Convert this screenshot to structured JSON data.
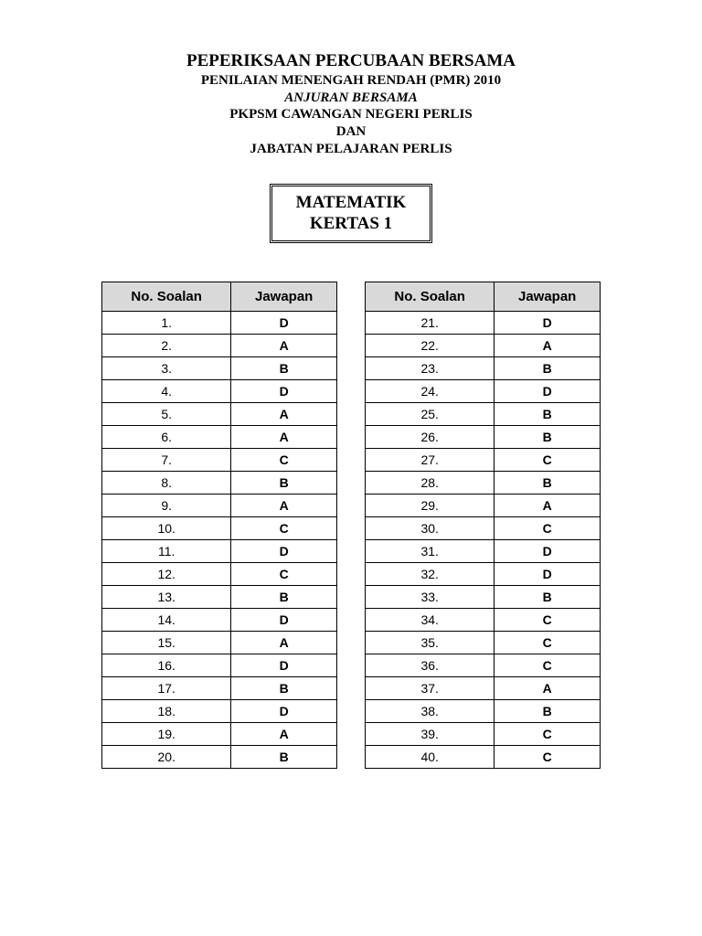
{
  "header": {
    "line1": "PEPERIKSAAN PERCUBAAN BERSAMA",
    "line2": "PENILAIAN MENENGAH RENDAH (PMR) 2010",
    "line3": "ANJURAN BERSAMA",
    "line4": "PKPSM CAWANGAN NEGERI PERLIS",
    "line5": "DAN",
    "line6": "JABATAN PELAJARAN PERLIS"
  },
  "subject": {
    "line1": "MATEMATIK",
    "line2": "KERTAS 1"
  },
  "table_headers": {
    "col1": "No. Soalan",
    "col2": "Jawapan"
  },
  "left_table": {
    "rows": [
      {
        "n": "1.",
        "a": "D"
      },
      {
        "n": "2.",
        "a": "A"
      },
      {
        "n": "3.",
        "a": "B"
      },
      {
        "n": "4.",
        "a": "D"
      },
      {
        "n": "5.",
        "a": "A"
      },
      {
        "n": "6.",
        "a": "A"
      },
      {
        "n": "7.",
        "a": "C"
      },
      {
        "n": "8.",
        "a": "B"
      },
      {
        "n": "9.",
        "a": "A"
      },
      {
        "n": "10.",
        "a": "C"
      },
      {
        "n": "11.",
        "a": "D"
      },
      {
        "n": "12.",
        "a": "C"
      },
      {
        "n": "13.",
        "a": "B"
      },
      {
        "n": "14.",
        "a": "D"
      },
      {
        "n": "15.",
        "a": "A"
      },
      {
        "n": "16.",
        "a": "D"
      },
      {
        "n": "17.",
        "a": "B"
      },
      {
        "n": "18.",
        "a": "D"
      },
      {
        "n": "19.",
        "a": "A"
      },
      {
        "n": "20.",
        "a": "B"
      }
    ]
  },
  "right_table": {
    "rows": [
      {
        "n": "21.",
        "a": "D"
      },
      {
        "n": "22.",
        "a": "A"
      },
      {
        "n": "23.",
        "a": "B"
      },
      {
        "n": "24.",
        "a": "D"
      },
      {
        "n": "25.",
        "a": "B"
      },
      {
        "n": "26.",
        "a": "B"
      },
      {
        "n": "27.",
        "a": "C"
      },
      {
        "n": "28.",
        "a": "B"
      },
      {
        "n": "29.",
        "a": "A"
      },
      {
        "n": "30.",
        "a": "C"
      },
      {
        "n": "31.",
        "a": "D"
      },
      {
        "n": "32.",
        "a": "D"
      },
      {
        "n": "33.",
        "a": "B"
      },
      {
        "n": "34.",
        "a": "C"
      },
      {
        "n": "35.",
        "a": "C"
      },
      {
        "n": "36.",
        "a": "C"
      },
      {
        "n": "37.",
        "a": "A"
      },
      {
        "n": "38.",
        "a": "B"
      },
      {
        "n": "39.",
        "a": "C"
      },
      {
        "n": "40.",
        "a": "C"
      }
    ]
  },
  "colors": {
    "header_bg": "#d9d9d9",
    "border": "#000000",
    "page_bg": "#ffffff",
    "text": "#000000"
  }
}
